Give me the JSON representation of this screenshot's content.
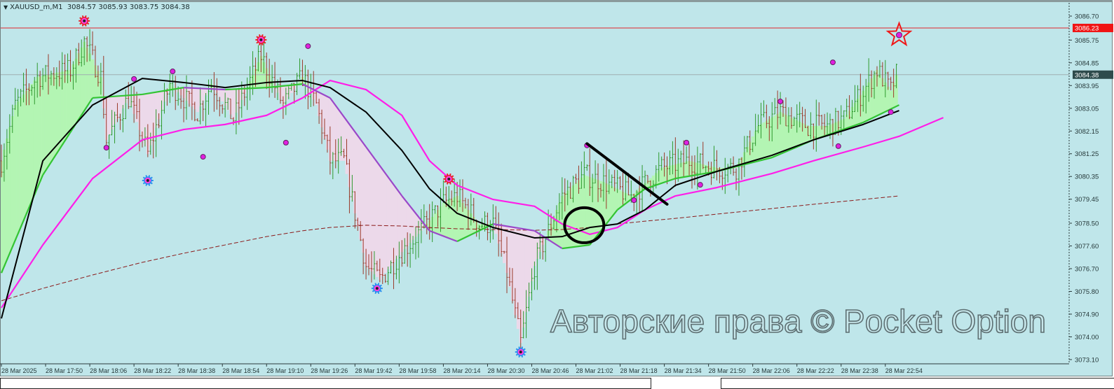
{
  "window": {
    "symbol_label": "XAUUSD_m,M1",
    "ohlc_label": "3084.57 3085.93 3083.75 3084.38",
    "watermark": "Авторские права © Pocket Option"
  },
  "colors": {
    "background": "#bfe6ea",
    "bull_bar": "#2f9a2f",
    "bear_bar": "#9a3a2a",
    "fill_bull": "#b3f5b3",
    "fill_bear": "#ecd9ea",
    "fast_ma_up": "#33c433",
    "fast_ma_down": "#9a48c8",
    "black_ma": "#000000",
    "magenta_ma": "#ff1ee8",
    "slow_ma_dashed": "#8b1a1a",
    "alert_line": "#e0262c",
    "last_price_badge": "#2e4b4c"
  },
  "chart_data": {
    "type": "ohlc-bar",
    "timeframe": "M1",
    "ylim": [
      3073.1,
      3086.7
    ],
    "y_ticks": [
      "3086.70",
      "3085.75",
      "3084.85",
      "3083.95",
      "3083.05",
      "3082.15",
      "3081.25",
      "3080.35",
      "3079.45",
      "3078.50",
      "3077.60",
      "3076.70",
      "3075.80",
      "3074.90",
      "3074.00",
      "3073.10"
    ],
    "x_ticks": [
      "28 Mar 2025",
      "28 Mar 17:50",
      "28 Mar 18:06",
      "28 Mar 18:22",
      "28 Mar 18:38",
      "28 Mar 18:54",
      "28 Mar 19:10",
      "28 Mar 19:26",
      "28 Mar 19:42",
      "28 Mar 19:58",
      "28 Mar 20:14",
      "28 Mar 20:30",
      "28 Mar 20:46",
      "28 Mar 21:02",
      "28 Mar 21:18",
      "28 Mar 21:34",
      "28 Mar 21:50",
      "28 Mar 22:06",
      "28 Mar 22:22",
      "28 Mar 22:38",
      "28 Mar 22:54"
    ],
    "x_start": "17:34",
    "last_bar_time": "22:58",
    "alert_level": {
      "value": 3086.23,
      "label": "3086.23"
    },
    "last_price": {
      "value": 3084.38,
      "label": "3084.38"
    },
    "close_path": [
      [
        "17:34",
        3080.97
      ],
      [
        "17:39",
        3083.18
      ],
      [
        "17:47",
        3084.29
      ],
      [
        "17:59",
        3084.57
      ],
      [
        "18:04",
        3085.68
      ],
      [
        "18:10",
        3084.29
      ],
      [
        "18:12",
        3081.8
      ],
      [
        "18:20",
        3083.46
      ],
      [
        "18:27",
        3081.24
      ],
      [
        "18:35",
        3084.01
      ],
      [
        "18:45",
        3082.9
      ],
      [
        "18:50",
        3084.01
      ],
      [
        "18:58",
        3082.63
      ],
      [
        "19:08",
        3085.12
      ],
      [
        "19:16",
        3083.18
      ],
      [
        "19:23",
        3084.29
      ],
      [
        "19:28",
        3083.18
      ],
      [
        "19:33",
        3080.97
      ],
      [
        "19:38",
        3080.97
      ],
      [
        "19:46",
        3076.81
      ],
      [
        "19:51",
        3076.26
      ],
      [
        "19:59",
        3077.36
      ],
      [
        "20:06",
        3078.2
      ],
      [
        "20:14",
        3079.3
      ],
      [
        "20:19",
        3079.58
      ],
      [
        "20:27",
        3078.47
      ],
      [
        "20:32",
        3078.47
      ],
      [
        "20:37",
        3076.53
      ],
      [
        "20:42",
        3073.76
      ],
      [
        "20:47",
        3076.81
      ],
      [
        "20:52",
        3078.2
      ],
      [
        "20:57",
        3079.58
      ],
      [
        "21:05",
        3080.41
      ],
      [
        "21:12",
        3080.13
      ],
      [
        "21:22",
        3079.58
      ],
      [
        "21:33",
        3080.69
      ],
      [
        "21:43",
        3080.97
      ],
      [
        "21:53",
        3080.69
      ],
      [
        "22:00",
        3080.69
      ],
      [
        "22:08",
        3082.35
      ],
      [
        "22:16",
        3082.9
      ],
      [
        "22:26",
        3082.35
      ],
      [
        "22:33",
        3082.35
      ],
      [
        "22:39",
        3082.63
      ],
      [
        "22:46",
        3083.74
      ],
      [
        "22:51",
        3084.57
      ],
      [
        "22:56",
        3083.74
      ],
      [
        "22:58",
        3084.38
      ]
    ],
    "indicators": {
      "times": [
        "17:34",
        "17:49",
        "18:07",
        "18:25",
        "18:40",
        "18:55",
        "19:10",
        "19:23",
        "19:33",
        "19:46",
        "19:59",
        "20:09",
        "20:19",
        "20:32",
        "20:47",
        "20:57",
        "21:07",
        "21:17",
        "21:27",
        "21:38",
        "21:53",
        "22:13",
        "22:28",
        "22:46",
        "22:59"
      ],
      "fast_ma": [
        3076.53,
        3080.41,
        3083.46,
        3083.6,
        3083.87,
        3083.79,
        3083.87,
        3084.01,
        3083.46,
        3081.52,
        3079.58,
        3078.2,
        3077.78,
        3078.47,
        3078.2,
        3077.5,
        3077.64,
        3079.03,
        3079.86,
        3080.27,
        3080.55,
        3081.1,
        3081.8,
        3082.49,
        3083.18
      ],
      "black_ma": [
        3074.73,
        3080.97,
        3083.18,
        3084.23,
        3084.07,
        3083.87,
        3084.07,
        3084.15,
        3083.87,
        3082.9,
        3081.38,
        3079.86,
        3078.89,
        3078.33,
        3077.92,
        3077.97,
        3078.33,
        3078.47,
        3079.03,
        3080.0,
        3080.55,
        3081.19,
        3081.8,
        3082.41,
        3082.96
      ],
      "magenta_ma": [
        3075.15,
        3077.64,
        3080.27,
        3081.8,
        3082.21,
        3082.41,
        3082.77,
        3083.46,
        3084.15,
        3083.79,
        3082.77,
        3080.97,
        3080.0,
        3079.44,
        3079.17,
        3078.47,
        3078.06,
        3078.33,
        3079.03,
        3079.58,
        3079.91,
        3080.47,
        3080.97,
        3081.52,
        3081.94
      ],
      "magenta_ma_extension": [
        [
          "23:15",
          3082.68
        ]
      ],
      "slow_ma_dashed": [
        3075.43,
        3075.92,
        3076.45,
        3076.95,
        3077.31,
        3077.64,
        3077.97,
        3078.2,
        3078.33,
        3078.42,
        3078.39,
        3078.33,
        3078.28,
        3078.25,
        3078.22,
        3078.25,
        3078.33,
        3078.47,
        3078.58,
        3078.69,
        3078.86,
        3079.08,
        3079.25,
        3079.44,
        3079.58
      ]
    },
    "signals_sun_red": [
      [
        "18:04",
        3086.51
      ],
      [
        "19:08",
        3085.76
      ],
      [
        "20:16",
        3080.25
      ]
    ],
    "signals_sun_blue": [
      [
        "18:27",
        3080.19
      ],
      [
        "19:50",
        3075.92
      ],
      [
        "20:42",
        3073.4
      ]
    ],
    "signal_star": [
      "22:59",
      3085.95
    ],
    "fractal_dots": [
      [
        "18:12",
        3081.49
      ],
      [
        "18:22",
        3084.21
      ],
      [
        "18:36",
        3084.51
      ],
      [
        "18:47",
        3081.13
      ],
      [
        "19:17",
        3081.69
      ],
      [
        "19:25",
        3085.51
      ],
      [
        "21:06",
        3081.58
      ],
      [
        "21:23",
        3079.41
      ],
      [
        "21:42",
        3081.69
      ],
      [
        "21:47",
        3080.02
      ],
      [
        "22:16",
        3083.32
      ],
      [
        "22:35",
        3084.87
      ],
      [
        "22:37",
        3081.55
      ],
      [
        "22:56",
        3082.9
      ]
    ],
    "drawn_trendline": [
      [
        "21:06",
        3081.65
      ],
      [
        "21:35",
        3079.25
      ]
    ],
    "drawn_ellipse": {
      "center": [
        "21:05",
        3078.42
      ]
    }
  }
}
